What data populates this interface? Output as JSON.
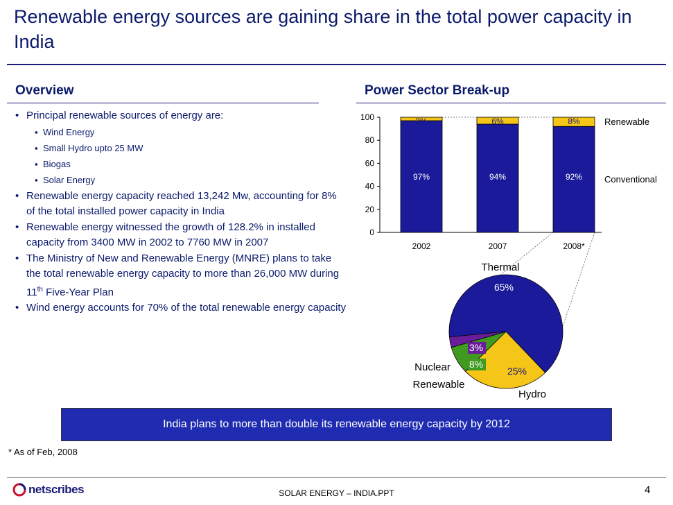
{
  "slide": {
    "title": "Renewable energy sources are gaining share in the total power capacity in India",
    "overview_heading": "Overview",
    "chart_heading": "Power Sector Break-up",
    "bullets": [
      {
        "text": "Principal renewable sources of energy are:",
        "sub": [
          "Wind Energy",
          "Small Hydro upto 25 MW",
          "Biogas",
          "Solar Energy"
        ]
      },
      {
        "text": "Renewable energy capacity reached 13,242 Mw, accounting for 8% of the total installed power capacity in India"
      },
      {
        "text": "Renewable energy witnessed the growth of 128.2% in installed capacity from 3400 MW in 2002 to 7760 MW in 2007"
      },
      {
        "text_before": "The Ministry of New and Renewable Energy (MNRE) plans to take the total renewable energy capacity to more than 26,000 MW during 11",
        "sup": "th",
        "text_after": " Five-Year Plan"
      },
      {
        "text": "Wind energy accounts for 70% of the total renewable energy capacity"
      }
    ],
    "banner": "India plans to more than double its renewable energy capacity by 2012",
    "footnote": "* As of Feb, 2008",
    "footer_center": "SOLAR ENERGY – INDIA.PPT",
    "page_number": "4",
    "logo_text": "netscribes"
  },
  "colors": {
    "conventional": "#1a1a9a",
    "renewable": "#f5c518",
    "thermal": "#1a1a9a",
    "hydro": "#f5c518",
    "renewable_slice": "#3f9a1f",
    "nuclear": "#6a1d9a",
    "banner": "#1f2bb0",
    "title": "#0b1a6b"
  },
  "chart_data": [
    {
      "type": "bar",
      "stacked": true,
      "categories": [
        "2002",
        "2007",
        "2008*"
      ],
      "series": [
        {
          "name": "Conventional",
          "values": [
            97,
            94,
            92
          ],
          "labels": [
            "97%",
            "94%",
            "92%"
          ]
        },
        {
          "name": "Renewable",
          "values": [
            3,
            6,
            8
          ],
          "labels": [
            "3%",
            "6%",
            "8%"
          ]
        }
      ],
      "ylim": [
        0,
        100
      ],
      "yticks": [
        "0",
        "20",
        "40",
        "60",
        "80",
        "100"
      ],
      "legend": [
        "Renewable",
        "Conventional"
      ]
    },
    {
      "type": "pie",
      "slices": [
        {
          "name": "Thermal",
          "value": 65,
          "label": "65%"
        },
        {
          "name": "Hydro",
          "value": 25,
          "label": "25%"
        },
        {
          "name": "Renewable",
          "value": 8,
          "label": "8%"
        },
        {
          "name": "Nuclear",
          "value": 3,
          "label": "3%"
        }
      ]
    }
  ]
}
